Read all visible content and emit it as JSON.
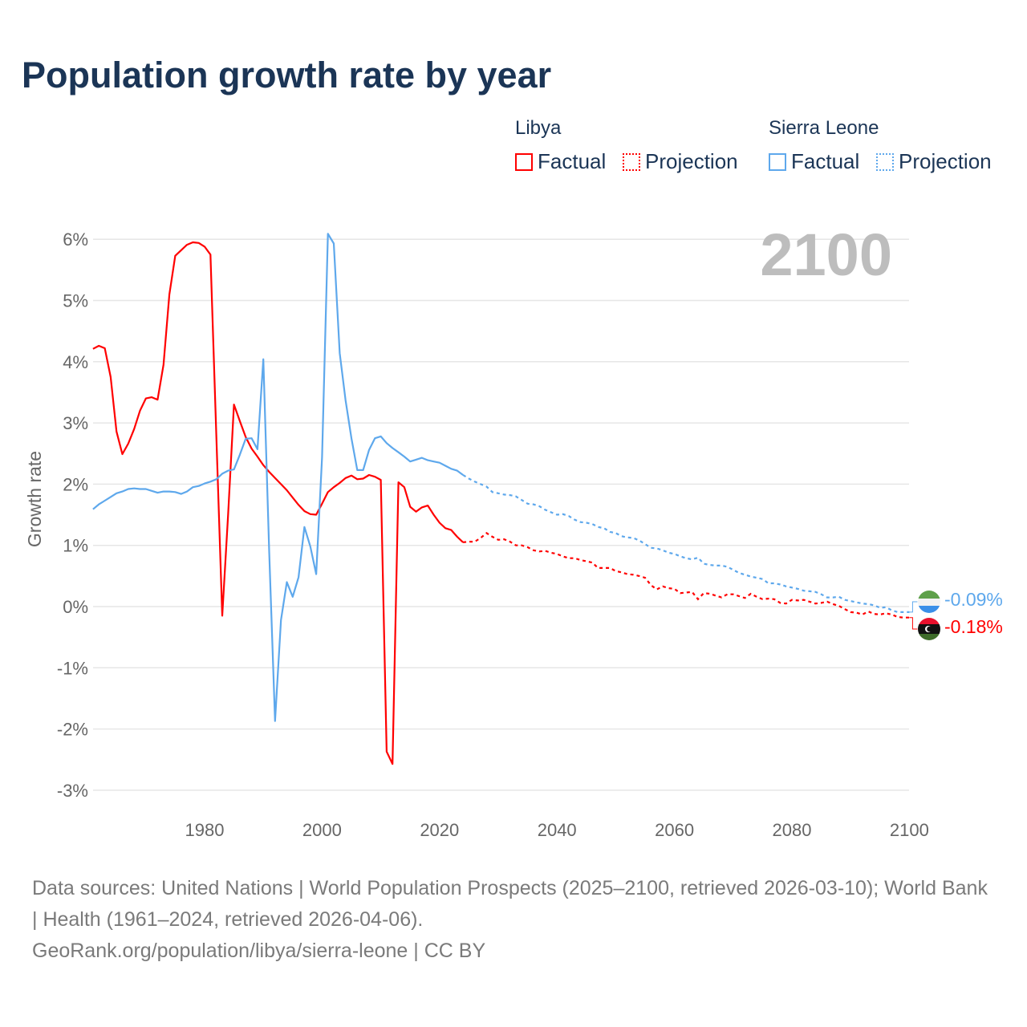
{
  "title": "Population growth rate by year",
  "legend": {
    "groups": [
      {
        "name": "Libya",
        "factual": "Factual",
        "projection": "Projection",
        "color": "#ff0000"
      },
      {
        "name": "Sierra Leone",
        "factual": "Factual",
        "projection": "Projection",
        "color": "#5ea8ec"
      }
    ]
  },
  "year_display": "2100",
  "end_labels": {
    "libya": "-0.18%",
    "sierra_leone": "-0.09%"
  },
  "footer": {
    "sources": "Data sources: United Nations | World Population Prospects (2025–2100, retrieved 2026-03-10); World Bank | Health (1961–2024, retrieved 2026-04-06).",
    "credit": "GeoRank.org/population/libya/sierra-leone | CC BY"
  },
  "chart_data": {
    "type": "line",
    "title": "Population growth rate by year",
    "xlabel": "",
    "ylabel": "Growth rate",
    "xlim": [
      1961,
      2100
    ],
    "ylim": [
      -3.4,
      6.3
    ],
    "x_ticks": [
      1980,
      2000,
      2020,
      2040,
      2060,
      2080,
      2100
    ],
    "x_tick_labels": [
      "1980",
      "2000",
      "2020",
      "2040",
      "2060",
      "2080",
      "2100"
    ],
    "y_ticks": [
      -3,
      -2,
      -1,
      0,
      1,
      2,
      3,
      4,
      5,
      6
    ],
    "y_tick_labels": [
      "-3%",
      "-2%",
      "-1%",
      "0%",
      "1%",
      "2%",
      "3%",
      "4%",
      "5%",
      "6%"
    ],
    "grid": true,
    "legend_position": "top-right",
    "factual_start": 1961,
    "projection_start": 2025,
    "series": [
      {
        "name": "Libya",
        "color": "#ff0000",
        "factual": [
          4.21,
          4.26,
          4.22,
          3.75,
          2.86,
          2.49,
          2.66,
          2.9,
          3.2,
          3.4,
          3.42,
          3.38,
          3.95,
          5.1,
          5.73,
          5.82,
          5.91,
          5.95,
          5.94,
          5.88,
          5.75,
          2.8,
          -0.15,
          1.5,
          3.3,
          3.03,
          2.77,
          2.58,
          2.45,
          2.31,
          2.2,
          2.1,
          2.0,
          1.9,
          1.78,
          1.66,
          1.56,
          1.51,
          1.5,
          1.68,
          1.87,
          1.95,
          2.02,
          2.1,
          2.14,
          2.08,
          2.09,
          2.15,
          2.12,
          2.07,
          -2.37,
          -2.57,
          2.03,
          1.95,
          1.63,
          1.55,
          1.62,
          1.65,
          1.5,
          1.37,
          1.28,
          1.25,
          1.14,
          1.05
        ],
        "projection": [
          1.06,
          1.06,
          1.12,
          1.2,
          1.14,
          1.09,
          1.1,
          1.06,
          1.0,
          1.0,
          0.97,
          0.92,
          0.9,
          0.91,
          0.88,
          0.86,
          0.82,
          0.79,
          0.79,
          0.76,
          0.74,
          0.72,
          0.63,
          0.63,
          0.63,
          0.58,
          0.56,
          0.53,
          0.52,
          0.5,
          0.47,
          0.35,
          0.28,
          0.33,
          0.3,
          0.29,
          0.22,
          0.23,
          0.24,
          0.12,
          0.22,
          0.21,
          0.18,
          0.15,
          0.2,
          0.2,
          0.17,
          0.14,
          0.21,
          0.16,
          0.12,
          0.13,
          0.12,
          0.06,
          0.05,
          0.11,
          0.1,
          0.11,
          0.08,
          0.05,
          0.06,
          0.08,
          0.04,
          0.01,
          -0.04,
          -0.09,
          -0.1,
          -0.13,
          -0.08,
          -0.12,
          -0.13,
          -0.11,
          -0.13,
          -0.17,
          -0.18,
          -0.18
        ]
      },
      {
        "name": "Sierra Leone",
        "color": "#5ea8ec",
        "factual": [
          1.59,
          1.67,
          1.73,
          1.79,
          1.85,
          1.88,
          1.92,
          1.93,
          1.92,
          1.92,
          1.89,
          1.86,
          1.88,
          1.88,
          1.87,
          1.84,
          1.88,
          1.95,
          1.97,
          2.01,
          2.04,
          2.08,
          2.17,
          2.22,
          2.24,
          2.48,
          2.74,
          2.75,
          2.57,
          4.04,
          0.9,
          -1.87,
          -0.22,
          0.4,
          0.16,
          0.48,
          1.3,
          0.98,
          0.53,
          2.44,
          6.09,
          5.93,
          4.14,
          3.37,
          2.75,
          2.23,
          2.23,
          2.56,
          2.75,
          2.78,
          2.67,
          2.59,
          2.52,
          2.45,
          2.37,
          2.4,
          2.43,
          2.39,
          2.37,
          2.35,
          2.3,
          2.25,
          2.22,
          2.15
        ],
        "projection": [
          2.09,
          2.04,
          2.0,
          1.96,
          1.87,
          1.85,
          1.83,
          1.82,
          1.8,
          1.74,
          1.68,
          1.67,
          1.64,
          1.58,
          1.54,
          1.5,
          1.51,
          1.48,
          1.42,
          1.38,
          1.37,
          1.35,
          1.3,
          1.28,
          1.22,
          1.2,
          1.15,
          1.13,
          1.12,
          1.08,
          1.02,
          0.96,
          0.95,
          0.92,
          0.88,
          0.86,
          0.82,
          0.79,
          0.77,
          0.8,
          0.7,
          0.68,
          0.67,
          0.67,
          0.65,
          0.6,
          0.55,
          0.52,
          0.49,
          0.47,
          0.45,
          0.38,
          0.38,
          0.36,
          0.33,
          0.31,
          0.29,
          0.26,
          0.25,
          0.24,
          0.2,
          0.15,
          0.15,
          0.16,
          0.11,
          0.09,
          0.07,
          0.05,
          0.04,
          0.02,
          -0.02,
          -0.01,
          -0.06,
          -0.09,
          -0.09,
          -0.09
        ]
      }
    ]
  }
}
